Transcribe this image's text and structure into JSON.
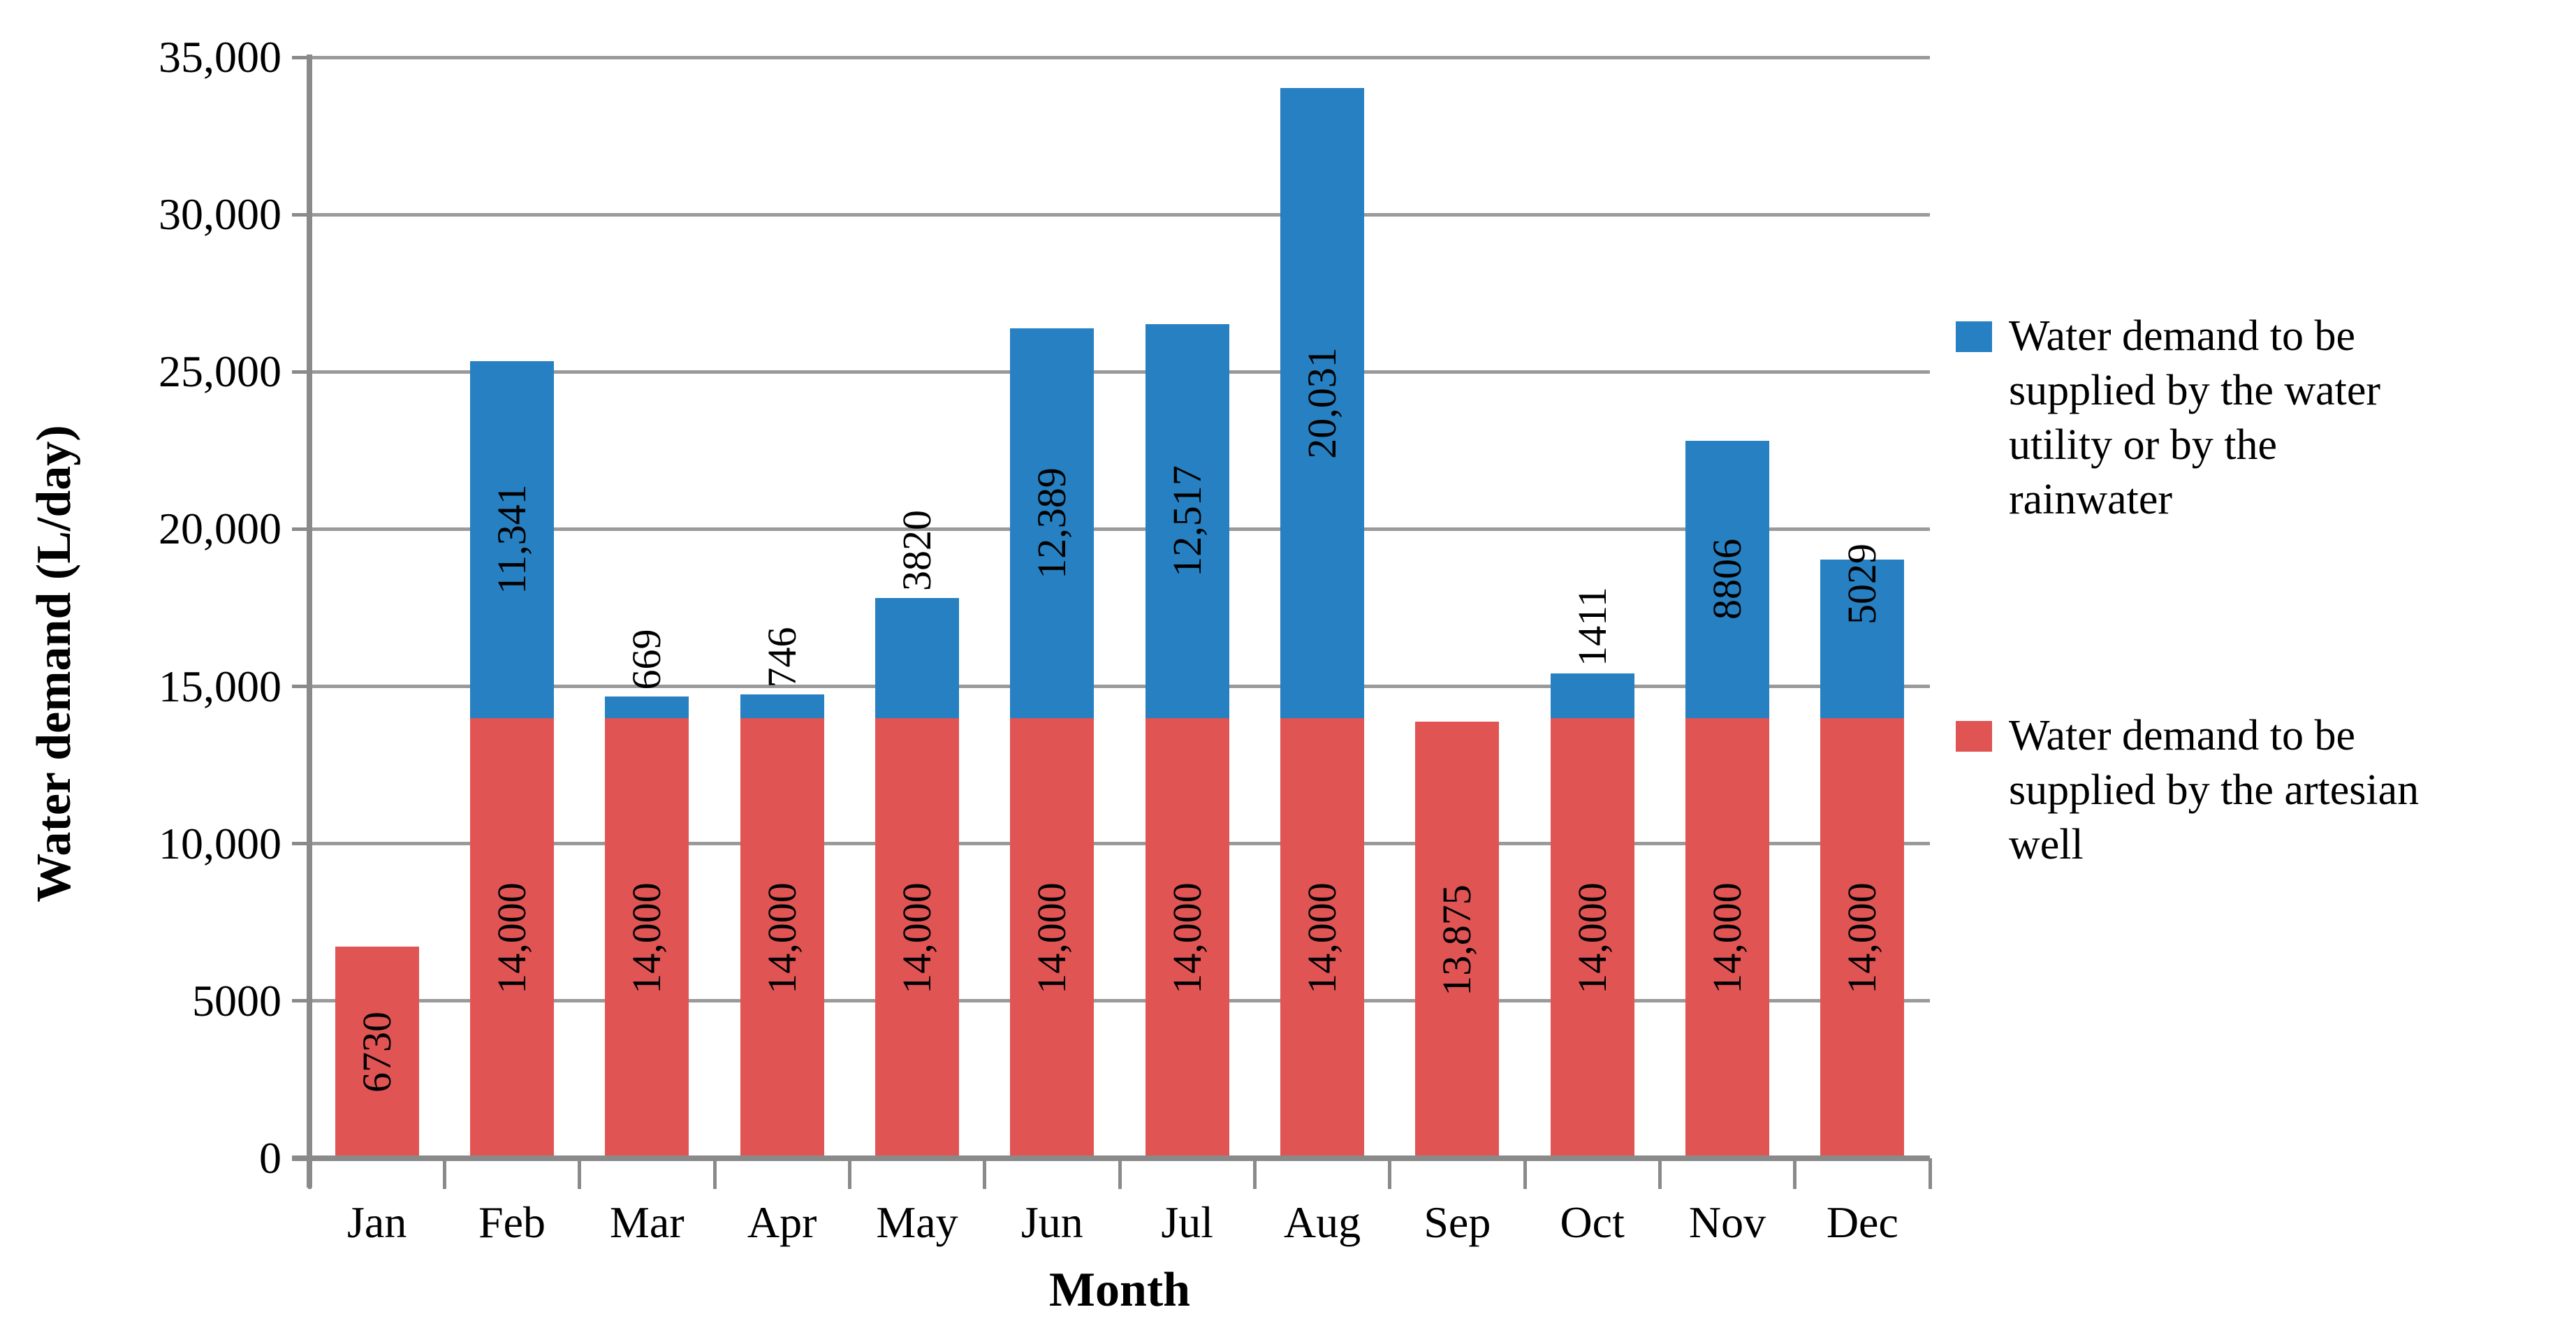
{
  "figure": {
    "background": "#ffffff",
    "ylabel": "Water demand (L/day)",
    "xlabel": "Month"
  },
  "chart_data": {
    "type": "bar",
    "stacked": true,
    "title": "",
    "xlabel": "Month",
    "ylabel": "Water demand (L/day)",
    "categories": [
      "Jan",
      "Feb",
      "Mar",
      "Apr",
      "May",
      "Jun",
      "Jul",
      "Aug",
      "Sep",
      "Oct",
      "Nov",
      "Dec"
    ],
    "series": [
      {
        "name": "Water demand to be supplied by the artesian well",
        "color": "#E05454",
        "values": [
          6730,
          14000,
          14000,
          14000,
          14000,
          14000,
          14000,
          14000,
          13875,
          14000,
          14000,
          14000
        ],
        "data_labels": [
          "6730",
          "14,000",
          "14,000",
          "14,000",
          "14,000",
          "14,000",
          "14,000",
          "14,000",
          "13,875",
          "14,000",
          "14,000",
          "14,000"
        ]
      },
      {
        "name": "Water demand to be supplied by the water utility or by the rainwater",
        "color": "#2680C1",
        "values": [
          0,
          11341,
          669,
          746,
          3820,
          12389,
          12517,
          20031,
          0,
          1411,
          8806,
          5029
        ],
        "data_labels": [
          "",
          "11,341",
          "669",
          "746",
          "3820",
          "12,389",
          "12,517",
          "20,031",
          "",
          "1411",
          "8806",
          "5029"
        ],
        "label_placement": [
          "none",
          "center",
          "above",
          "above",
          "above",
          "center",
          "center",
          "center",
          "none",
          "above",
          "center",
          "top"
        ]
      }
    ],
    "ylim": [
      0,
      35000
    ],
    "y_tick_step": 5000,
    "y_tick_labels": [
      "0",
      "5000",
      "10,000",
      "15,000",
      "20,000",
      "25,000",
      "30,000",
      "35,000"
    ],
    "grid": true,
    "legend_position": "right"
  },
  "legend": {
    "entries": [
      {
        "swatch_color": "#2680C1",
        "lines": [
          "Water demand to be",
          "supplied by the water",
          "utility or by the",
          "rainwater"
        ]
      },
      {
        "swatch_color": "#E05454",
        "lines": [
          "Water demand to be",
          "supplied by the artesian",
          "well"
        ]
      }
    ]
  }
}
